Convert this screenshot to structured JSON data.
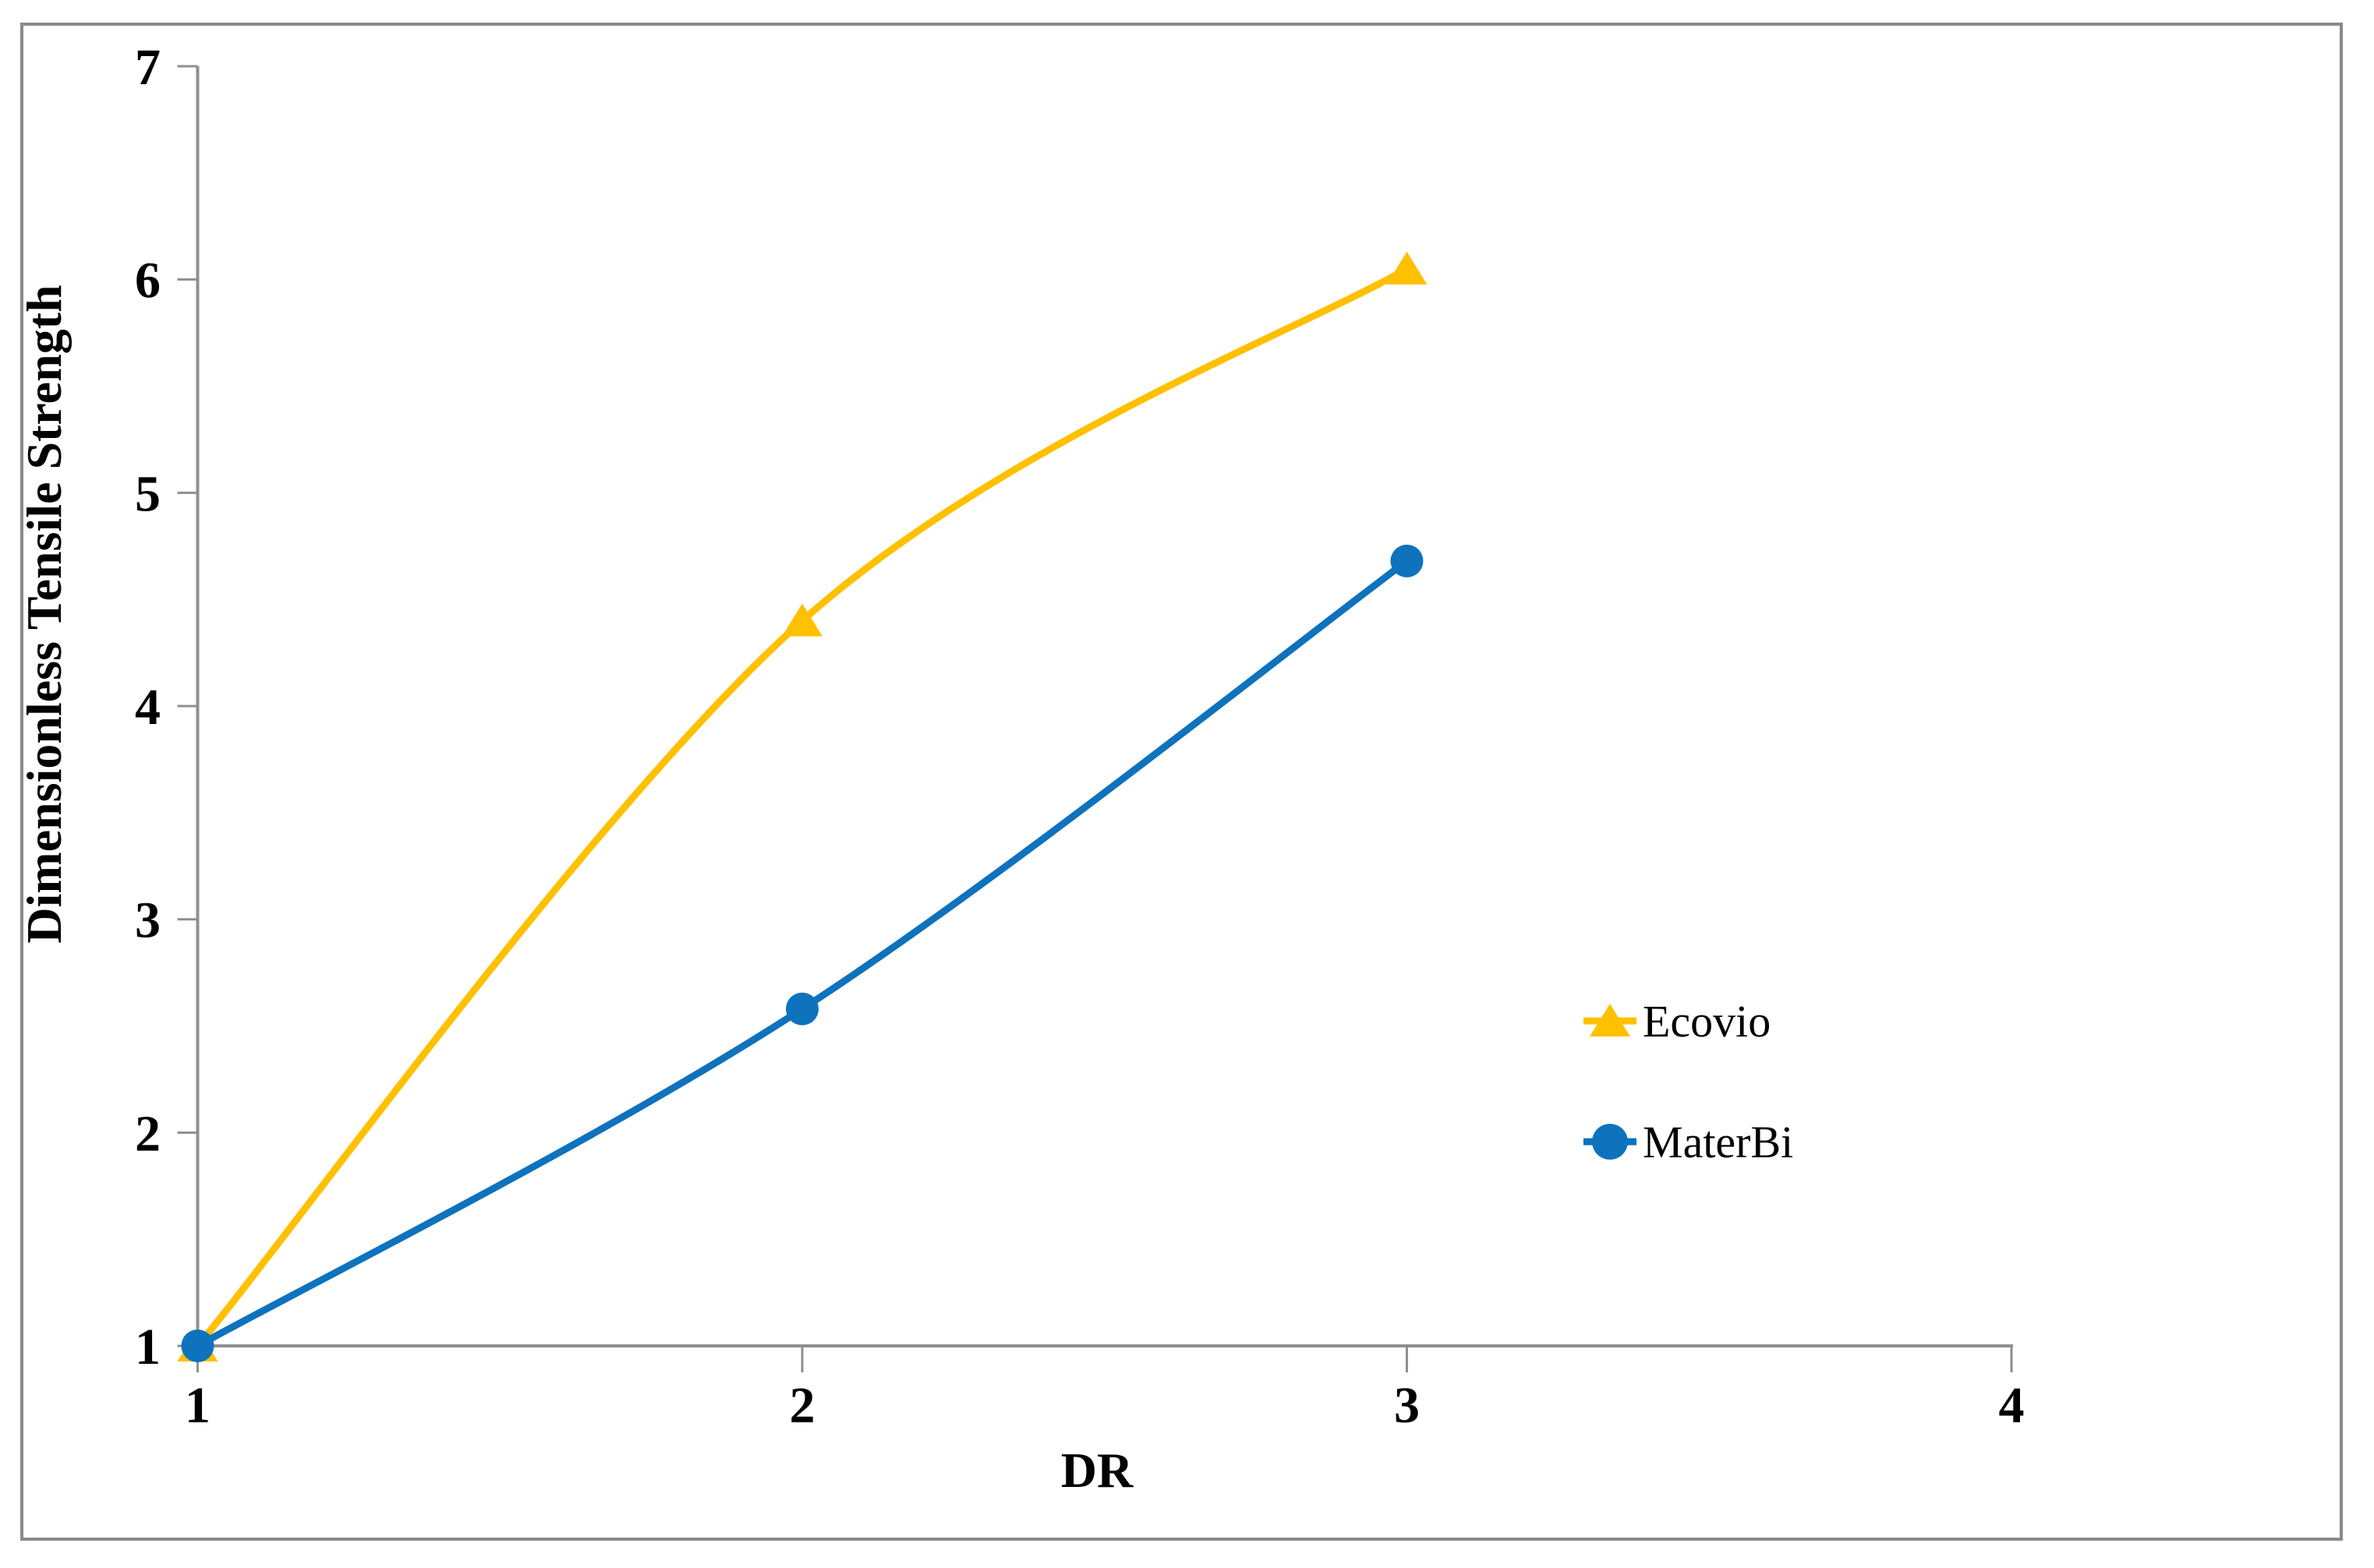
{
  "figure": {
    "background_color": "#ffffff",
    "border_color": "#8a8a8a",
    "axis_color": "#8f8f8f",
    "text_color": "#000000"
  },
  "chart_data": {
    "type": "line",
    "title": "",
    "xlabel": "DR",
    "ylabel": "Dimensionless Tensile Strength",
    "x": [
      1,
      2,
      3
    ],
    "series": [
      {
        "name": "Ecovio",
        "color": "#FFC000",
        "marker": "triangle",
        "smooth": true,
        "values": [
          1.0,
          4.4,
          6.05
        ]
      },
      {
        "name": "MaterBi",
        "color": "#0E72BD",
        "marker": "circle",
        "smooth": true,
        "values": [
          1.0,
          2.58,
          4.68
        ]
      }
    ],
    "xlim": [
      1,
      4
    ],
    "ylim": [
      1,
      7
    ],
    "xticks": [
      "1",
      "2",
      "3",
      "4"
    ],
    "yticks": [
      "1",
      "2",
      "3",
      "4",
      "5",
      "6",
      "7"
    ],
    "grid": false,
    "legend_position": "right-middle",
    "legend_items": [
      "Ecovio",
      "MaterBi"
    ]
  }
}
